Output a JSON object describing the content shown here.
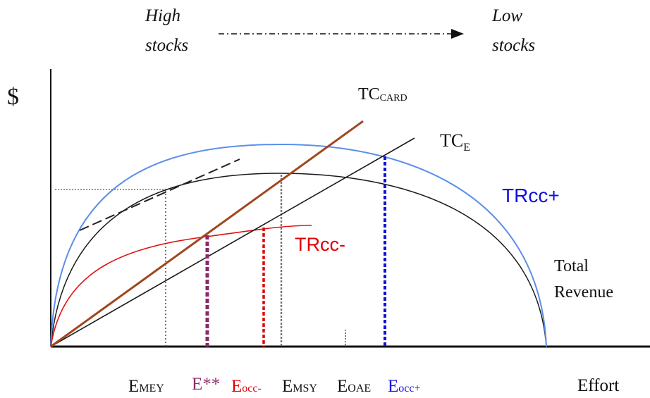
{
  "top_labels": {
    "high": [
      "High",
      "stocks"
    ],
    "low": [
      "Low",
      "stocks"
    ]
  },
  "axis": {
    "y_label": "$",
    "x_label": "Effort"
  },
  "curve_labels": {
    "tc_card": {
      "main": "TC",
      "sub": "CARD"
    },
    "tc_e": {
      "main": "TC",
      "sub": "E"
    },
    "tr_cc_plus": "TRcc+",
    "tr_cc_minus": "TRcc-",
    "total_revenue": [
      "Total",
      "Revenue"
    ]
  },
  "x_ticks": [
    {
      "main": "E",
      "sub": "MEY",
      "color": "#111111"
    },
    {
      "main": "E**",
      "sub": "",
      "color": "#8b2a68"
    },
    {
      "main": "E",
      "sub": "occ-",
      "color": "#e00000"
    },
    {
      "main": "E",
      "sub": "MSY",
      "color": "#111111"
    },
    {
      "main": "E",
      "sub": "OAE",
      "color": "#111111"
    },
    {
      "main": "E",
      "sub": "occ+",
      "color": "#1010e0"
    }
  ],
  "colors": {
    "total_revenue": "#1a1a1a",
    "tr_cc_plus": "#5b8fe8",
    "tr_cc_minus": "#e01010",
    "tc_card": "#a0461e",
    "tc_e": "#1a1a1a",
    "e_star": "#8b2a68",
    "e_occ_minus": "#e00000",
    "e_occ_plus": "#1010e0",
    "label_blue": "#1010e0",
    "label_red": "#e00000"
  }
}
